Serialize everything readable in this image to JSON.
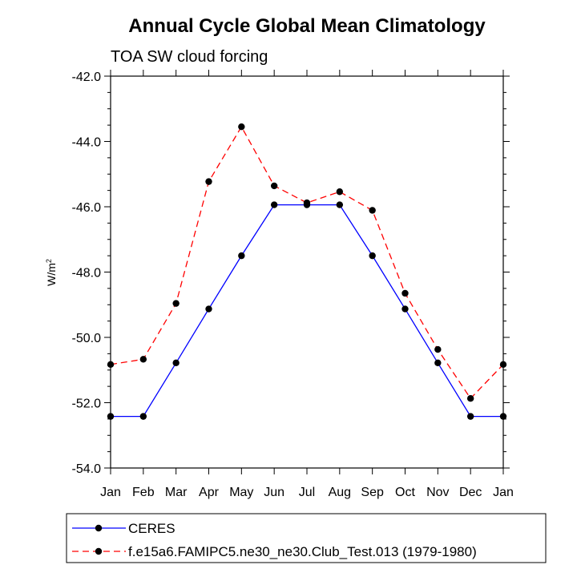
{
  "chart_data": {
    "type": "line",
    "title": "Annual Cycle Global Mean Climatology",
    "subtitle": "TOA SW cloud forcing",
    "ylabel": "W/m",
    "ylabel_sup": "2",
    "xlabel": "",
    "categories": [
      "Jan",
      "Feb",
      "Mar",
      "Apr",
      "May",
      "Jun",
      "Jul",
      "Aug",
      "Sep",
      "Oct",
      "Nov",
      "Dec",
      "Jan"
    ],
    "ylim": [
      -54.0,
      -42.0
    ],
    "yticks": [
      -54.0,
      -52.0,
      -50.0,
      -48.0,
      -46.0,
      -44.0,
      -42.0
    ],
    "ytick_labels": [
      "-54.0",
      "-52.0",
      "-50.0",
      "-48.0",
      "-46.0",
      "-44.0",
      "-42.0"
    ],
    "legend_position": "bottom",
    "series": [
      {
        "name": "CERES",
        "color": "#0000ff",
        "dash": "solid",
        "values": [
          -52.42,
          -52.42,
          -50.78,
          -49.13,
          -47.5,
          -45.94,
          -45.94,
          -45.94,
          -47.5,
          -49.13,
          -50.78,
          -52.42,
          -52.42
        ]
      },
      {
        "name": "f.e15a6.FAMIPC5.ne30_ne30.Club_Test.013 (1979-1980)",
        "color": "#ff0000",
        "dash": "dashed",
        "values": [
          -50.83,
          -50.67,
          -48.96,
          -45.23,
          -43.55,
          -45.36,
          -45.88,
          -45.54,
          -46.11,
          -48.65,
          -50.37,
          -51.87,
          -50.83
        ]
      }
    ]
  }
}
